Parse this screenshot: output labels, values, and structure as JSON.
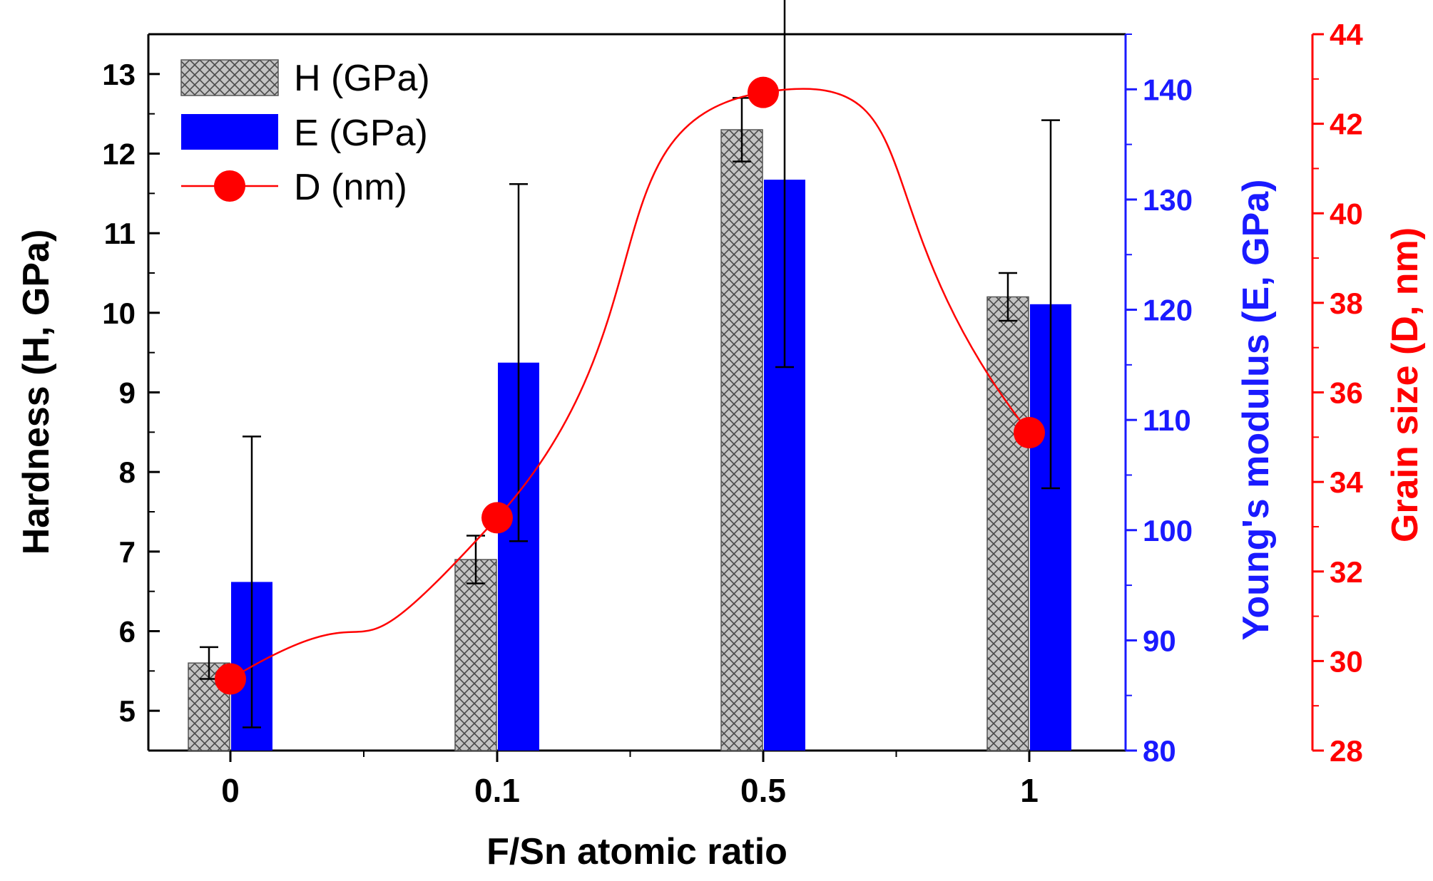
{
  "chart_data": {
    "type": "bar",
    "xlabel": "F/Sn atomic ratio",
    "categories": [
      "0",
      "0.1",
      "0.5",
      "1"
    ],
    "series": [
      {
        "name": "H (GPa)",
        "type": "bar",
        "axis": "left",
        "color": "#c0c0c0",
        "pattern": "crosshatch",
        "values": [
          5.6,
          6.9,
          12.3,
          10.2
        ],
        "errors": [
          0.2,
          0.3,
          0.4,
          0.3
        ]
      },
      {
        "name": "E (GPa)",
        "type": "bar",
        "axis": "right1",
        "color": "#0000ff",
        "values": [
          95.3,
          115.2,
          131.8,
          120.5
        ],
        "errors": [
          13.2,
          16.2,
          17.0,
          16.7
        ]
      },
      {
        "name": "D (nm)",
        "type": "line",
        "axis": "right2",
        "color": "#ff0000",
        "marker": "circle",
        "smooth": true,
        "values": [
          29.6,
          33.2,
          42.7,
          35.1
        ]
      }
    ],
    "axes": {
      "left": {
        "label": "Hardness (H, GPa)",
        "range": [
          4.5,
          13.5
        ],
        "ticks": [
          "5",
          "6",
          "7",
          "8",
          "9",
          "10",
          "11",
          "12",
          "13"
        ],
        "color": "#000000"
      },
      "right1": {
        "label": "Young's modulus (E, GPa)",
        "range": [
          80,
          145
        ],
        "ticks": [
          "80",
          "90",
          "100",
          "110",
          "120",
          "130",
          "140"
        ],
        "color": "#1a1aff"
      },
      "right2": {
        "label": "Grain size (D, nm)",
        "range": [
          28,
          44
        ],
        "ticks": [
          "28",
          "30",
          "32",
          "34",
          "36",
          "38",
          "40",
          "42",
          "44"
        ],
        "color": "#ff0000"
      }
    },
    "legend": {
      "position": "top-left",
      "entries": [
        "H (GPa)",
        "E (GPa)",
        "D (nm)"
      ]
    }
  }
}
